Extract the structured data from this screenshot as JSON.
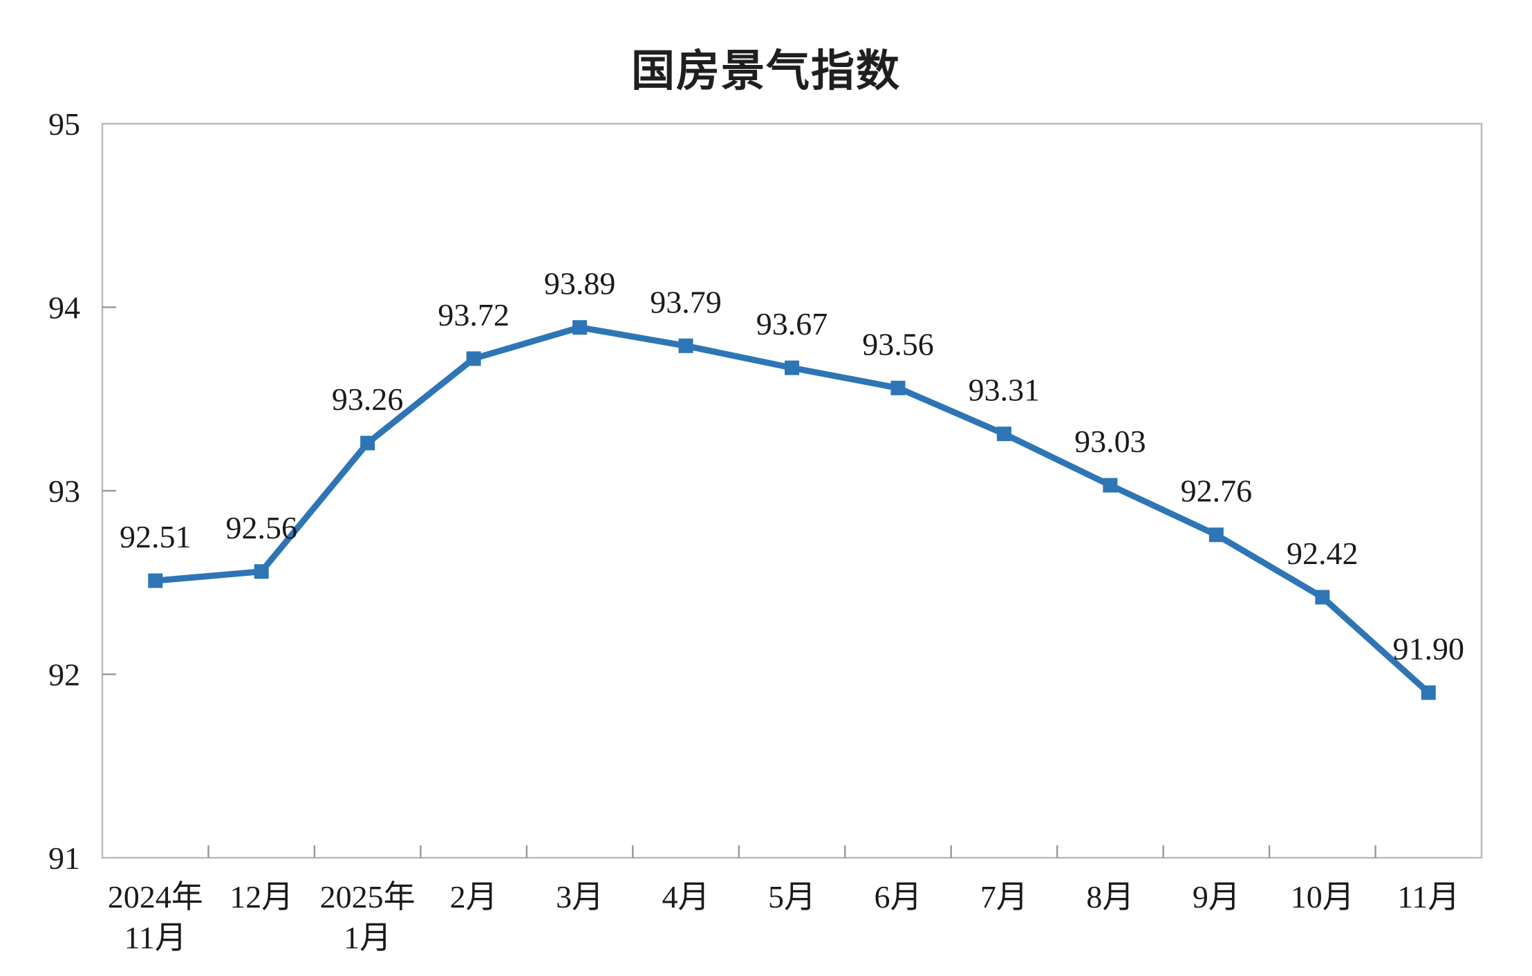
{
  "page": {
    "background": "#FFFFFF"
  },
  "chart_data": {
    "type": "line",
    "title": "国房景气指数",
    "categories": [
      "2024年\n11月",
      "12月",
      "2025年\n1月",
      "2月",
      "3月",
      "4月",
      "5月",
      "6月",
      "7月",
      "8月",
      "9月",
      "10月",
      "11月"
    ],
    "series": [
      {
        "name": "国房景气指数",
        "values": [
          92.51,
          92.56,
          93.26,
          93.72,
          93.89,
          93.79,
          93.67,
          93.56,
          93.31,
          93.03,
          92.76,
          92.42,
          91.9
        ]
      }
    ],
    "data_labels": [
      "92.51",
      "92.56",
      "93.26",
      "93.72",
      "93.89",
      "93.79",
      "93.67",
      "93.56",
      "93.31",
      "93.03",
      "92.76",
      "92.42",
      "91.90"
    ],
    "xlabel": "",
    "ylabel": "",
    "ylim": [
      91,
      95
    ],
    "yticks": [
      91,
      92,
      93,
      94,
      95
    ],
    "ytick_labels": [
      "91",
      "92",
      "93",
      "94",
      "95"
    ],
    "grid": false,
    "legend": "none",
    "marker": "square",
    "colors": {
      "line": "#2E75B6",
      "marker": "#2E75B6",
      "plot_border": "#B9B9B9",
      "tick": "#9A9A9A",
      "text": "#1A1A1A"
    }
  }
}
